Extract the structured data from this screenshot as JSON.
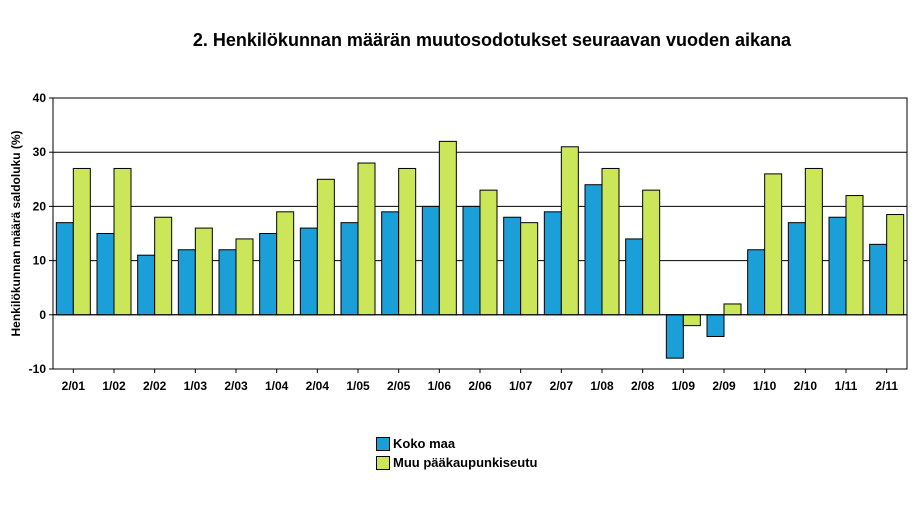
{
  "chart_data": {
    "type": "bar",
    "title": "2. Henkilökunnan määrän muutosodotukset seuraavan vuoden aikana",
    "xlabel": "",
    "ylabel": "Henkilökunnan määrä saldoluku (%)",
    "ylim": [
      -10,
      40
    ],
    "yticks": [
      -10,
      0,
      10,
      20,
      30,
      40
    ],
    "grid": true,
    "legend_position": "bottom",
    "categories": [
      "2/01",
      "1/02",
      "2/02",
      "1/03",
      "2/03",
      "1/04",
      "2/04",
      "1/05",
      "2/05",
      "1/06",
      "2/06",
      "1/07",
      "2/07",
      "1/08",
      "2/08",
      "1/09",
      "2/09",
      "1/10",
      "2/10",
      "1/11",
      "2/11"
    ],
    "series": [
      {
        "name": "Koko maa",
        "color": "#1a9fd9",
        "values": [
          17,
          15,
          11,
          12,
          12,
          15,
          16,
          17,
          19,
          20,
          20,
          18,
          19,
          24,
          14,
          -8,
          -4,
          12,
          17,
          18,
          13
        ]
      },
      {
        "name": "Muu pääkaupunkiseutu",
        "color": "#cce65a",
        "values": [
          27,
          27,
          18,
          16,
          14,
          19,
          25,
          28,
          27,
          32,
          23,
          17,
          31,
          27,
          23,
          -2,
          2,
          26,
          27,
          22,
          18.5
        ]
      }
    ]
  }
}
